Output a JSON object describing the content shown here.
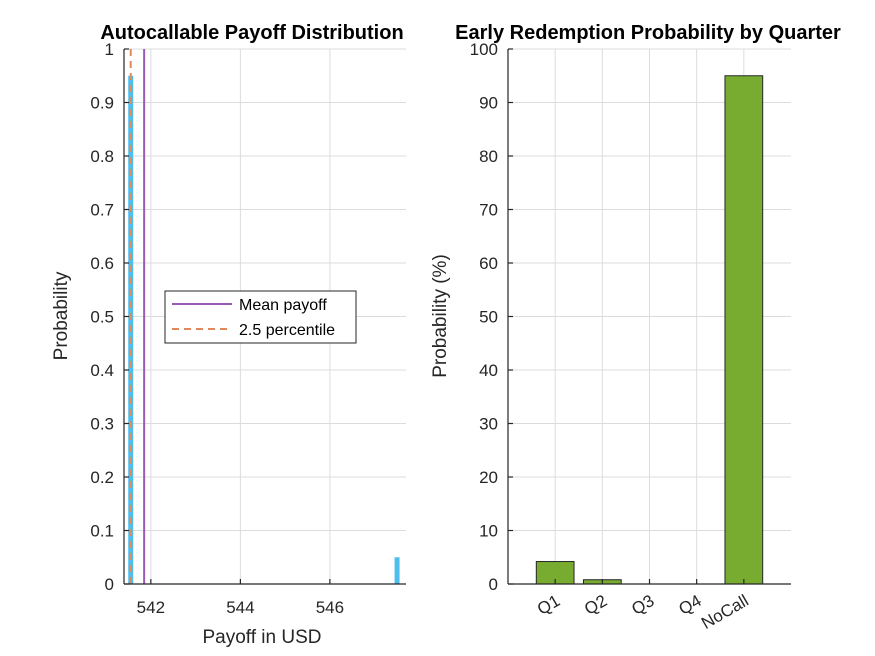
{
  "chart_data": [
    {
      "type": "bar",
      "title": "Autocallable Payoff Distribution",
      "xlabel": "Payoff in USD",
      "ylabel": "Probability",
      "xlim": [
        541.4,
        547.7
      ],
      "ylim": [
        0,
        1
      ],
      "xticks": [
        542,
        544,
        546
      ],
      "xtick_labels": [
        "542",
        "544",
        "546"
      ],
      "yticks": [
        0,
        0.1,
        0.2,
        0.3,
        0.4,
        0.5,
        0.6,
        0.7,
        0.8,
        0.9,
        1
      ],
      "ytick_labels": [
        "0",
        "0.1",
        "0.2",
        "0.3",
        "0.4",
        "0.5",
        "0.6",
        "0.7",
        "0.8",
        "0.9",
        "1"
      ],
      "grid": true,
      "bars": [
        {
          "x": 541.55,
          "value": 0.95
        },
        {
          "x": 547.5,
          "value": 0.05
        }
      ],
      "bar_color": "#4DBEEE",
      "vlines": [
        {
          "name": "Mean payoff",
          "x": 541.85,
          "style": "solid",
          "color": "#9B59B6"
        },
        {
          "name": "2.5 percentile",
          "x": 541.55,
          "style": "dashed",
          "color": "#E08A5C"
        }
      ],
      "legend": {
        "placement": "center",
        "entries": [
          "Mean payoff",
          "2.5 percentile"
        ]
      }
    },
    {
      "type": "bar",
      "title": "Early Redemption Probability by Quarter",
      "xlabel": "",
      "ylabel": "Probability (%)",
      "categories": [
        "Q1",
        "Q2",
        "Q3",
        "Q4",
        "NoCall"
      ],
      "values": [
        4.2,
        0.8,
        0,
        0,
        95
      ],
      "ylim": [
        0,
        100
      ],
      "yticks": [
        0,
        10,
        20,
        30,
        40,
        50,
        60,
        70,
        80,
        90,
        100
      ],
      "ytick_labels": [
        "0",
        "10",
        "20",
        "30",
        "40",
        "50",
        "60",
        "70",
        "80",
        "90",
        "100"
      ],
      "grid": true,
      "bar_color": "#77AC30"
    }
  ]
}
